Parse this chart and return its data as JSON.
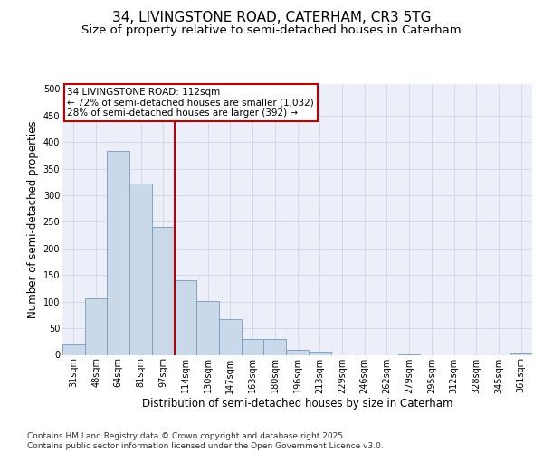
{
  "title_line1": "34, LIVINGSTONE ROAD, CATERHAM, CR3 5TG",
  "title_line2": "Size of property relative to semi-detached houses in Caterham",
  "xlabel": "Distribution of semi-detached houses by size in Caterham",
  "ylabel": "Number of semi-detached properties",
  "categories": [
    "31sqm",
    "48sqm",
    "64sqm",
    "81sqm",
    "97sqm",
    "114sqm",
    "130sqm",
    "147sqm",
    "163sqm",
    "180sqm",
    "196sqm",
    "213sqm",
    "229sqm",
    "246sqm",
    "262sqm",
    "279sqm",
    "295sqm",
    "312sqm",
    "328sqm",
    "345sqm",
    "361sqm"
  ],
  "values": [
    19,
    107,
    383,
    323,
    241,
    141,
    101,
    68,
    30,
    30,
    9,
    6,
    0,
    0,
    0,
    1,
    0,
    0,
    0,
    0,
    3
  ],
  "bar_color": "#c9d9ea",
  "bar_edge_color": "#7799bb",
  "grid_color": "#d0d4e8",
  "background_color": "#eceef8",
  "vline_color": "#bb0000",
  "annotation_text": "34 LIVINGSTONE ROAD: 112sqm\n← 72% of semi-detached houses are smaller (1,032)\n28% of semi-detached houses are larger (392) →",
  "annotation_box_color": "#bb0000",
  "ylim": [
    0,
    510
  ],
  "yticks": [
    0,
    50,
    100,
    150,
    200,
    250,
    300,
    350,
    400,
    450,
    500
  ],
  "footer_text": "Contains HM Land Registry data © Crown copyright and database right 2025.\nContains public sector information licensed under the Open Government Licence v3.0.",
  "title_fontsize": 11,
  "subtitle_fontsize": 9.5,
  "axis_label_fontsize": 8.5,
  "tick_fontsize": 7,
  "annotation_fontsize": 7.5,
  "footer_fontsize": 6.5
}
